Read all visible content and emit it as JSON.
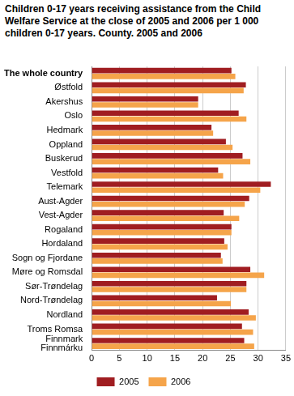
{
  "chart_data": {
    "type": "bar",
    "title": "Children 0-17 years receiving assistance from the Child Welfare Service at the close of 2005 and 2006 per 1 000 children 0-17 years. County. 2005 and 2006",
    "orientation": "horizontal",
    "categories": [
      "The whole country",
      "Østfold",
      "Akershus",
      "Oslo",
      "Hedmark",
      "Oppland",
      "Buskerud",
      "Vestfold",
      "Telemark",
      "Aust-Agder",
      "Vest-Agder",
      "Rogaland",
      "Hordaland",
      "Sogn og Fjordane",
      "Møre og Romsdal",
      "Sør-Trøndelag",
      "Nord-Trøndelag",
      "Nordland",
      "Troms Romsa",
      "Finnmark\nFinnmárku"
    ],
    "series": [
      {
        "name": "2005",
        "color": "#a01d21",
        "values": [
          25.2,
          27.8,
          19.2,
          26.5,
          21.6,
          24.2,
          27.2,
          22.8,
          32.3,
          28.4,
          23.8,
          25.2,
          23.9,
          23.3,
          28.6,
          27.9,
          22.6,
          28.3,
          27.1,
          27.5
        ]
      },
      {
        "name": "2006",
        "color": "#f5a44a",
        "values": [
          25.9,
          27.4,
          19.2,
          27.9,
          21.9,
          25.4,
          28.6,
          23.7,
          30.4,
          27.6,
          26.6,
          25.2,
          24.5,
          23.6,
          31.1,
          27.9,
          25.1,
          29.6,
          29.1,
          29.3
        ]
      }
    ],
    "xlim": [
      0,
      35
    ],
    "xticks": [
      0,
      5,
      10,
      15,
      20,
      25,
      30,
      35
    ],
    "grid": true,
    "legend": "bottom"
  }
}
